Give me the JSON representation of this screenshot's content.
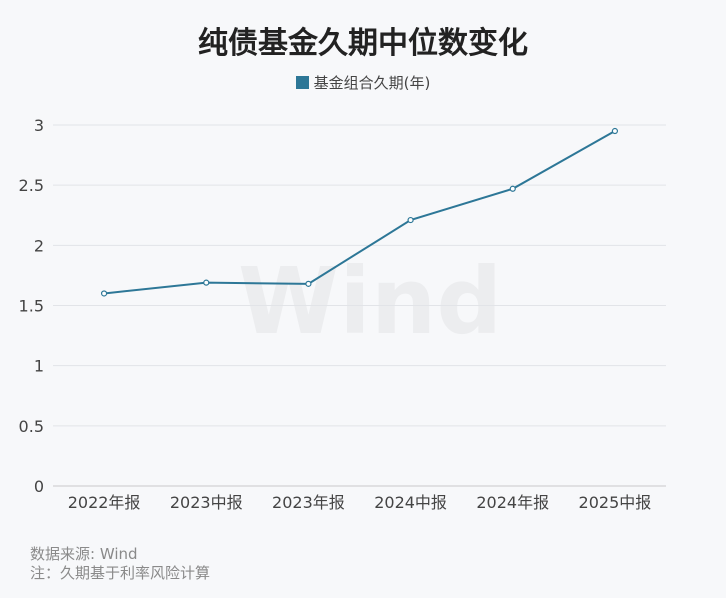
{
  "chart_data": {
    "type": "line",
    "title": "纯债基金久期中位数变化",
    "categories": [
      "2022年报",
      "2023中报",
      "2023年报",
      "2024中报",
      "2024年报",
      "2025中报"
    ],
    "series": [
      {
        "name": "基金组合久期(年)",
        "values": [
          1.6,
          1.69,
          1.68,
          2.21,
          2.47,
          2.95
        ],
        "color": "#2d7797"
      }
    ],
    "yticks": [
      "0",
      "0.5",
      "1",
      "1.5",
      "2",
      "2.5",
      "3"
    ],
    "ylim": [
      0,
      3
    ],
    "grid": true,
    "legend_position": "top-center"
  },
  "footer": {
    "source": "数据来源: Wind",
    "note": "注：久期基于利率风险计算"
  },
  "watermark": "Wind"
}
